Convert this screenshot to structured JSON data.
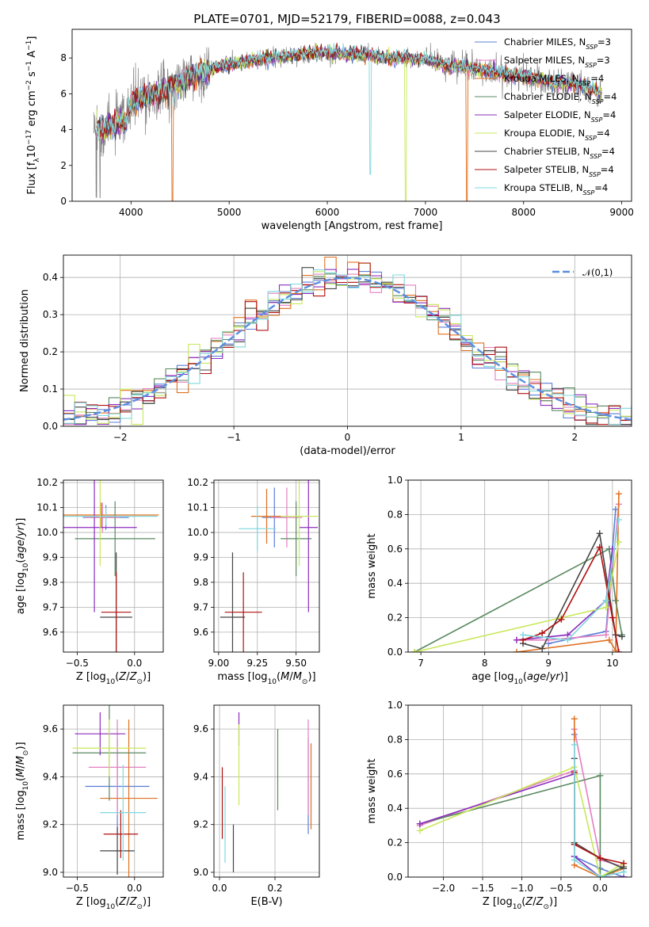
{
  "figure": {
    "title": "PLATE=0701, MJD=52179, FIBERID=0088, z=0.043"
  },
  "colors": {
    "Chabrier MILES": "#5b7fd6",
    "Salpeter MILES": "#e37fc0",
    "Kroupa MILES": "#e07020",
    "Chabrier ELODIE": "#5a8a60",
    "Salpeter ELODIE": "#8b2dbe",
    "Kroupa ELODIE": "#c8e85a",
    "Chabrier STELIB": "#444444",
    "Salpeter STELIB": "#b01010",
    "Kroupa STELIB": "#7fd8de",
    "data": "#808080",
    "normal": "#5b8ee0"
  },
  "chart_data": [
    {
      "type": "line",
      "id": "spectrum",
      "xlabel": "wavelength [Angstrom, rest frame]",
      "ylabel": "Flux [f_λ 10^-17 erg cm^-2 s^-1 A^-1]",
      "xlim": [
        3400,
        9100
      ],
      "ylim": [
        0,
        9.6
      ],
      "xticks": [
        4000,
        5000,
        6000,
        7000,
        8000,
        9000
      ],
      "yticks": [
        0,
        2,
        4,
        6,
        8
      ],
      "grid": false,
      "legend_position": "upper right",
      "legend": [
        {
          "name": "Chabrier MILES",
          "sub": "SSP",
          "n": "3"
        },
        {
          "name": "Salpeter MILES",
          "sub": "SSP",
          "n": "3"
        },
        {
          "name": "Kroupa MILES",
          "sub": "SSP",
          "n": "4"
        },
        {
          "name": "Chabrier ELODIE",
          "sub": "SSP",
          "n": "4"
        },
        {
          "name": "Salpeter ELODIE",
          "sub": "SSP",
          "n": "4"
        },
        {
          "name": "Kroupa ELODIE",
          "sub": "SSP",
          "n": "4"
        },
        {
          "name": "Chabrier STELIB",
          "sub": "SSP",
          "n": "4"
        },
        {
          "name": "Salpeter STELIB",
          "sub": "SSP",
          "n": "4"
        },
        {
          "name": "Kroupa STELIB",
          "sub": "SSP",
          "n": "4"
        }
      ],
      "continuum": {
        "wavelength": [
          3650,
          3700,
          3800,
          3900,
          3950,
          4000,
          4100,
          4200,
          4300,
          4400,
          4500,
          4600,
          4700,
          4800,
          4900,
          5000,
          5200,
          5400,
          5600,
          5800,
          6000,
          6200,
          6400,
          6600,
          6800,
          7000,
          7200,
          7400,
          7600,
          7800,
          8000,
          8200,
          8400,
          8600,
          8800
        ],
        "flux": [
          4.3,
          4.0,
          4.2,
          4.5,
          4.4,
          5.4,
          5.7,
          5.9,
          6.1,
          6.3,
          6.6,
          6.9,
          7.1,
          7.3,
          7.5,
          7.6,
          7.8,
          8.0,
          8.1,
          8.2,
          8.3,
          8.2,
          8.2,
          8.0,
          8.0,
          7.9,
          7.6,
          7.5,
          7.3,
          7.1,
          7.0,
          6.8,
          6.6,
          6.5,
          6.0
        ]
      },
      "model_range": [
        3650,
        8800
      ],
      "data_range": [
        3620,
        8800
      ]
    },
    {
      "type": "bar",
      "id": "residuals",
      "xlabel": "(data-model)/error",
      "ylabel": "Normed distribution",
      "xlim": [
        -2.5,
        2.5
      ],
      "ylim": [
        0,
        0.46
      ],
      "xticks": [
        -2,
        -1,
        0,
        1,
        2
      ],
      "yticks": [
        0.0,
        0.1,
        0.2,
        0.3,
        0.4
      ],
      "grid": true,
      "legend_position": "upper right",
      "legend": [
        {
          "name": "𝒩(0,1)",
          "style": "dashed"
        }
      ],
      "bin_width": 0.1,
      "reference_curve": "normal(0,1)"
    },
    {
      "type": "scatter",
      "id": "age-vs-Z",
      "xlabel": "Z [log10(Z/Z⊙)]",
      "ylabel": "age  [log10(age/yr)]",
      "xlim": [
        -0.62,
        0.25
      ],
      "ylim": [
        9.52,
        10.21
      ],
      "xticks": [
        -0.5,
        0.0
      ],
      "yticks": [
        9.6,
        9.7,
        9.8,
        9.9,
        10.0,
        10.1,
        10.2
      ],
      "grid": true,
      "errorbars": [
        {
          "series": "Chabrier MILES",
          "x": -0.25,
          "xerr": 0.2,
          "y": 10.06,
          "yerr": 0.05
        },
        {
          "series": "Salpeter MILES",
          "x": -0.28,
          "xerr": 0.15,
          "y": 10.06,
          "yerr": 0.06
        },
        {
          "series": "Kroupa MILES",
          "x": -0.29,
          "xerr": 0.5,
          "y": 10.07,
          "yerr": 0.05
        },
        {
          "series": "Chabrier ELODIE",
          "x": -0.17,
          "xerr": 0.35,
          "y": 9.975,
          "yerr": 0.15
        },
        {
          "series": "Salpeter ELODIE",
          "x": -0.35,
          "xerr": 0.37,
          "y": 10.02,
          "yerr": 0.34
        },
        {
          "series": "Kroupa ELODIE",
          "x": -0.3,
          "xerr": 0.12,
          "y": 10.065,
          "yerr": 0.2
        },
        {
          "series": "Chabrier STELIB",
          "x": -0.16,
          "xerr": 0.14,
          "y": 9.66,
          "yerr": 0.26
        },
        {
          "series": "Salpeter STELIB",
          "x": -0.16,
          "xerr": 0.13,
          "y": 9.68,
          "yerr": 0.16
        },
        {
          "series": "Kroupa STELIB",
          "x": -0.25,
          "xerr": 0.45,
          "y": 10.065,
          "yerr": 0.035
        }
      ]
    },
    {
      "type": "scatter",
      "id": "age-vs-mass",
      "xlabel": "mass [log10(M/M⊙)]",
      "ylabel": "",
      "xlim": [
        8.97,
        9.65
      ],
      "ylim": [
        9.52,
        10.21
      ],
      "xticks": [
        9.0,
        9.25,
        9.5
      ],
      "yticks": [
        9.6,
        9.7,
        9.8,
        9.9,
        10.0,
        10.1,
        10.2
      ],
      "grid": true,
      "errorbars": [
        {
          "series": "Chabrier MILES",
          "x": 9.36,
          "xerr": 0.08,
          "y": 10.06,
          "yerr": 0.12
        },
        {
          "series": "Salpeter MILES",
          "x": 9.44,
          "xerr": 0.1,
          "y": 10.06,
          "yerr": 0.12
        },
        {
          "series": "Kroupa MILES",
          "x": 9.31,
          "xerr": 0.1,
          "y": 10.065,
          "yerr": 0.11
        },
        {
          "series": "Chabrier ELODIE",
          "x": 9.5,
          "xerr": 0.1,
          "y": 9.975,
          "yerr": 0.15
        },
        {
          "series": "Salpeter ELODIE",
          "x": 9.58,
          "xerr": 0.06,
          "y": 10.02,
          "yerr": 0.34
        },
        {
          "series": "Kroupa ELODIE",
          "x": 9.52,
          "xerr": 0.12,
          "y": 10.065,
          "yerr": 0.2
        },
        {
          "series": "Chabrier STELIB",
          "x": 9.09,
          "xerr": 0.08,
          "y": 9.66,
          "yerr": 0.26
        },
        {
          "series": "Salpeter STELIB",
          "x": 9.16,
          "xerr": 0.12,
          "y": 9.68,
          "yerr": 0.16
        },
        {
          "series": "Kroupa STELIB",
          "x": 9.25,
          "xerr": 0.12,
          "y": 10.015,
          "yerr": 0.09
        }
      ]
    },
    {
      "type": "line",
      "id": "massweight-vs-age",
      "xlabel": "age  [log10(age/yr)]",
      "ylabel": "mass weight",
      "xlim": [
        6.8,
        10.3
      ],
      "ylim": [
        0,
        1.0
      ],
      "xticks": [
        7,
        8,
        9,
        10
      ],
      "yticks": [
        0.0,
        0.2,
        0.4,
        0.6,
        0.8,
        1.0
      ],
      "grid": true,
      "series": [
        {
          "name": "Chabrier MILES",
          "x": [
            9.0,
            9.9,
            10.05
          ],
          "y": [
            0.05,
            0.12,
            0.83
          ]
        },
        {
          "name": "Salpeter MILES",
          "x": [
            8.5,
            9.0,
            9.9,
            10.1
          ],
          "y": [
            0.07,
            0.07,
            0.1,
            0.86
          ]
        },
        {
          "name": "Kroupa MILES",
          "x": [
            8.5,
            9.95,
            10.05,
            10.1
          ],
          "y": [
            0.0,
            0.07,
            0.01,
            0.92
          ]
        },
        {
          "name": "Chabrier ELODIE",
          "x": [
            6.9,
            9.95,
            10.05,
            10.15
          ],
          "y": [
            0.0,
            0.6,
            0.3,
            0.1
          ]
        },
        {
          "name": "Salpeter ELODIE",
          "x": [
            8.5,
            9.3,
            9.9,
            10.0
          ],
          "y": [
            0.07,
            0.1,
            0.3,
            0.6
          ]
        },
        {
          "name": "Kroupa ELODIE",
          "x": [
            6.9,
            9.2,
            9.9,
            10.1
          ],
          "y": [
            0.0,
            0.2,
            0.26,
            0.64
          ]
        },
        {
          "name": "Chabrier STELIB",
          "x": [
            8.6,
            8.9,
            9.8,
            10.05,
            10.15
          ],
          "y": [
            0.05,
            0.02,
            0.69,
            0.1,
            0.09
          ]
        },
        {
          "name": "Salpeter STELIB",
          "x": [
            8.6,
            8.9,
            9.2,
            9.8,
            10.0,
            10.1
          ],
          "y": [
            0.07,
            0.11,
            0.19,
            0.61,
            0.2,
            0.0
          ]
        },
        {
          "name": "Kroupa STELIB",
          "x": [
            8.6,
            9.3,
            9.9,
            10.1
          ],
          "y": [
            0.1,
            0.07,
            0.3,
            0.77
          ]
        }
      ]
    },
    {
      "type": "scatter",
      "id": "mass-vs-Z",
      "xlabel": "Z [log10(Z/Z⊙)]",
      "ylabel": "mass [log10(M/M⊙)]",
      "xlim": [
        -0.62,
        0.25
      ],
      "ylim": [
        8.98,
        9.7
      ],
      "xticks": [
        -0.5,
        0.0
      ],
      "yticks": [
        9.0,
        9.2,
        9.4,
        9.6
      ],
      "grid": true,
      "errorbars": [
        {
          "series": "Chabrier MILES",
          "x": -0.15,
          "xerr": 0.28,
          "y": 9.36,
          "yerr": 0.2
        },
        {
          "series": "Salpeter MILES",
          "x": -0.15,
          "xerr": 0.25,
          "y": 9.44,
          "yerr": 0.2
        },
        {
          "series": "Kroupa MILES",
          "x": -0.05,
          "xerr": 0.25,
          "y": 9.31,
          "yerr": 0.33
        },
        {
          "series": "Chabrier ELODIE",
          "x": -0.22,
          "xerr": 0.32,
          "y": 9.5,
          "yerr": 0.2
        },
        {
          "series": "Salpeter ELODIE",
          "x": -0.3,
          "xerr": 0.22,
          "y": 9.58,
          "yerr": 0.09
        },
        {
          "series": "Kroupa ELODIE",
          "x": -0.22,
          "xerr": 0.32,
          "y": 9.52,
          "yerr": 0.12
        },
        {
          "series": "Chabrier STELIB",
          "x": -0.15,
          "xerr": 0.15,
          "y": 9.09,
          "yerr": 0.1
        },
        {
          "series": "Salpeter STELIB",
          "x": -0.12,
          "xerr": 0.15,
          "y": 9.16,
          "yerr": 0.1
        },
        {
          "series": "Kroupa STELIB",
          "x": -0.1,
          "xerr": 0.2,
          "y": 9.25,
          "yerr": 0.2
        }
      ]
    },
    {
      "type": "scatter",
      "id": "mass-vs-ebv",
      "xlabel": "E(B-V)",
      "ylabel": "",
      "xlim": [
        -0.02,
        0.36
      ],
      "ylim": [
        8.98,
        9.7
      ],
      "xticks": [
        0.0,
        0.2
      ],
      "yticks": [
        9.0,
        9.2,
        9.4,
        9.6
      ],
      "grid": true,
      "errorbars": [
        {
          "series": "Chabrier MILES",
          "x": 0.32,
          "xerr": 0,
          "y": 9.36,
          "yerr": 0.2
        },
        {
          "series": "Salpeter MILES",
          "x": 0.32,
          "xerr": 0,
          "y": 9.44,
          "yerr": 0.2
        },
        {
          "series": "Kroupa MILES",
          "x": 0.33,
          "xerr": 0,
          "y": 9.36,
          "yerr": 0.18
        },
        {
          "series": "Chabrier ELODIE",
          "x": 0.21,
          "xerr": 0,
          "y": 9.43,
          "yerr": 0.17
        },
        {
          "series": "Salpeter ELODIE",
          "x": 0.07,
          "xerr": 0,
          "y": 9.6,
          "yerr": 0.07
        },
        {
          "series": "Kroupa ELODIE",
          "x": 0.07,
          "xerr": 0,
          "y": 9.45,
          "yerr": 0.17
        },
        {
          "series": "Chabrier STELIB",
          "x": 0.05,
          "xerr": 0,
          "y": 9.1,
          "yerr": 0.1
        },
        {
          "series": "Salpeter STELIB",
          "x": 0.01,
          "xerr": 0,
          "y": 9.29,
          "yerr": 0.15
        },
        {
          "series": "Kroupa STELIB",
          "x": 0.02,
          "xerr": 0,
          "y": 9.2,
          "yerr": 0.16
        }
      ]
    },
    {
      "type": "line",
      "id": "massweight-vs-Z",
      "xlabel": "Z [log10(Z/Z⊙)]",
      "ylabel": "mass weight",
      "xlim": [
        -2.45,
        0.4
      ],
      "ylim": [
        0,
        1.0
      ],
      "xticks": [
        -2.0,
        -1.5,
        -1.0,
        -0.5,
        0.0
      ],
      "yticks": [
        0.0,
        0.2,
        0.4,
        0.6,
        0.8,
        1.0
      ],
      "grid": true,
      "series": [
        {
          "name": "Chabrier MILES",
          "x": [
            -0.33,
            -0.33,
            0.0,
            0.3
          ],
          "y": [
            0.83,
            0.12,
            0.05,
            0.0
          ]
        },
        {
          "name": "Salpeter MILES",
          "x": [
            -2.3,
            -0.33,
            -0.33,
            0.0,
            0.3
          ],
          "y": [
            0.3,
            0.62,
            0.86,
            0.1,
            0.06
          ]
        },
        {
          "name": "Kroupa MILES",
          "x": [
            -0.33,
            -0.33,
            0.0,
            0.3
          ],
          "y": [
            0.92,
            0.07,
            0.0,
            0.05
          ]
        },
        {
          "name": "Chabrier ELODIE",
          "x": [
            -2.3,
            0.0,
            0.0,
            0.3
          ],
          "y": [
            0.31,
            0.59,
            0.0,
            0.06
          ]
        },
        {
          "name": "Salpeter ELODIE",
          "x": [
            -2.3,
            -0.33,
            -0.33,
            0.0,
            0.3
          ],
          "y": [
            0.31,
            0.6,
            0.12,
            0.0,
            0.0
          ]
        },
        {
          "name": "Kroupa ELODIE",
          "x": [
            -2.3,
            -0.33,
            0.0,
            0.3
          ],
          "y": [
            0.27,
            0.64,
            0.0,
            0.08
          ]
        },
        {
          "name": "Chabrier STELIB",
          "x": [
            -0.33,
            -0.33,
            0.0,
            0.3
          ],
          "y": [
            0.69,
            0.2,
            0.11,
            0.05
          ]
        },
        {
          "name": "Salpeter STELIB",
          "x": [
            -0.33,
            -0.33,
            0.0,
            0.3
          ],
          "y": [
            0.61,
            0.19,
            0.11,
            0.08
          ]
        },
        {
          "name": "Kroupa STELIB",
          "x": [
            -0.33,
            -0.33,
            0.0,
            0.3
          ],
          "y": [
            0.77,
            0.1,
            0.0,
            0.03
          ]
        }
      ]
    }
  ]
}
